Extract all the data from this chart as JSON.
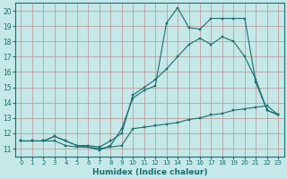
{
  "xlabel": "Humidex (Indice chaleur)",
  "background_color": "#c5e8e8",
  "line_color": "#1a6e6e",
  "grid_color": "#c09090",
  "xlim": [
    -0.5,
    23.5
  ],
  "ylim": [
    10.5,
    20.5
  ],
  "xticks": [
    0,
    1,
    2,
    3,
    4,
    5,
    6,
    7,
    8,
    9,
    10,
    11,
    12,
    13,
    14,
    15,
    16,
    17,
    18,
    19,
    20,
    21,
    22,
    23
  ],
  "yticks": [
    11,
    12,
    13,
    14,
    15,
    16,
    17,
    18,
    19,
    20
  ],
  "line1_x": [
    0,
    1,
    2,
    3,
    4,
    5,
    6,
    7,
    8,
    9,
    10,
    11,
    12,
    13,
    14,
    15,
    16,
    17,
    18,
    19,
    20,
    21,
    22,
    23
  ],
  "line1_y": [
    11.5,
    11.5,
    11.5,
    11.5,
    11.2,
    11.1,
    11.1,
    11.0,
    11.1,
    11.2,
    12.3,
    12.4,
    12.5,
    12.6,
    12.7,
    12.9,
    13.0,
    13.2,
    13.3,
    13.5,
    13.6,
    13.7,
    13.8,
    13.2
  ],
  "line2_x": [
    0,
    1,
    2,
    3,
    4,
    5,
    6,
    7,
    8,
    9,
    10,
    11,
    12,
    13,
    14,
    15,
    16,
    17,
    18,
    19,
    20,
    21,
    22,
    23
  ],
  "line2_y": [
    11.5,
    11.5,
    11.5,
    11.8,
    11.5,
    11.2,
    11.2,
    11.1,
    11.5,
    12.0,
    14.5,
    15.0,
    15.5,
    16.2,
    17.0,
    17.8,
    18.2,
    17.8,
    18.3,
    18.0,
    17.0,
    15.5,
    13.5,
    13.2
  ],
  "line3_x": [
    0,
    1,
    2,
    3,
    4,
    5,
    6,
    7,
    8,
    9,
    10,
    11,
    12,
    13,
    14,
    15,
    16,
    17,
    18,
    19,
    20,
    21,
    22,
    23
  ],
  "line3_y": [
    11.5,
    11.5,
    11.5,
    11.8,
    11.5,
    11.2,
    11.1,
    10.9,
    11.2,
    12.3,
    14.3,
    14.8,
    15.1,
    19.2,
    20.2,
    18.9,
    18.8,
    19.5,
    19.5,
    19.5,
    19.5,
    15.3,
    13.5,
    13.2
  ]
}
